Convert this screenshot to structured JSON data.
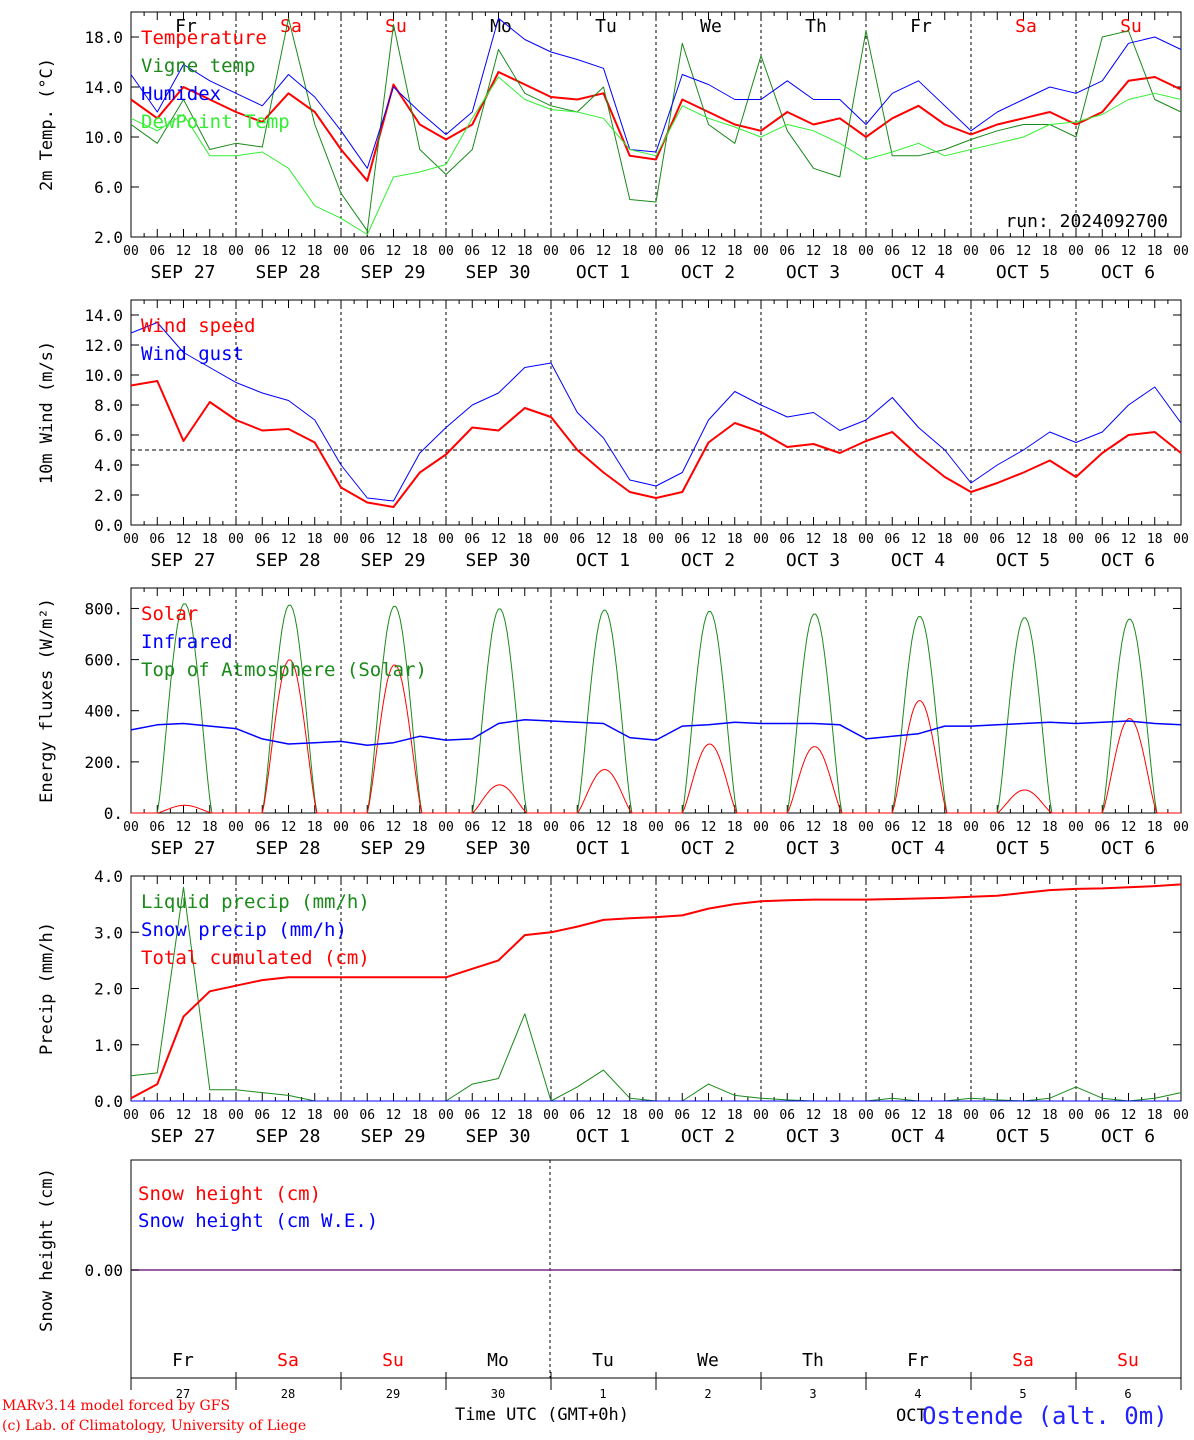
{
  "footer": {
    "model_line1": "MARv3.14 model forced by GFS",
    "model_line2": "(c) Lab. of Climatology, University of Liege",
    "time_label": "Time UTC (GMT+0h)",
    "location": "Ostende (alt. 0m)",
    "month_label": "OCT"
  },
  "colors": {
    "red": "#ff0000",
    "green": "#1a8a1a",
    "blue": "#0000ff",
    "lightgreen": "#33ee33",
    "purple": "#7a2a8a"
  },
  "days": [
    {
      "weekday": "Fr",
      "date": "SEP 27",
      "num": "27",
      "weekend": false
    },
    {
      "weekday": "Sa",
      "date": "SEP 28",
      "num": "28",
      "weekend": true
    },
    {
      "weekday": "Su",
      "date": "SEP 29",
      "num": "29",
      "weekend": true
    },
    {
      "weekday": "Mo",
      "date": "SEP 30",
      "num": "30",
      "weekend": false
    },
    {
      "weekday": "Tu",
      "date": "OCT  1",
      "num": "1",
      "weekend": false
    },
    {
      "weekday": "We",
      "date": "OCT  2",
      "num": "2",
      "weekend": false
    },
    {
      "weekday": "Th",
      "date": "OCT  3",
      "num": "3",
      "weekend": false
    },
    {
      "weekday": "Fr",
      "date": "OCT  4",
      "num": "4",
      "weekend": false
    },
    {
      "weekday": "Sa",
      "date": "OCT  5",
      "num": "5",
      "weekend": true
    },
    {
      "weekday": "Su",
      "date": "OCT  6",
      "num": "6",
      "weekend": true
    }
  ],
  "hour_ticks": [
    "00",
    "06",
    "12",
    "18"
  ],
  "end_tick": "00",
  "chart_data": [
    {
      "type": "line",
      "ylabel": "2m Temp. (°C)",
      "ylim": [
        2,
        20
      ],
      "yticks": [
        2,
        6,
        10,
        14,
        18
      ],
      "ytick_labels": [
        "2.0",
        "6.0",
        "10.0",
        "14.0",
        "18.0"
      ],
      "annotation": "run: 2024092700",
      "legend": "top-left",
      "x_hours": [
        0,
        6,
        12,
        18,
        24,
        30,
        36,
        42,
        48,
        54,
        60,
        66,
        72,
        78,
        84,
        90,
        96,
        102,
        108,
        114,
        120,
        126,
        132,
        138,
        144,
        150,
        156,
        162,
        168,
        174,
        180,
        186,
        192,
        198,
        204,
        210,
        216,
        222,
        228,
        234,
        240
      ],
      "series": [
        {
          "name": "Temperature",
          "color": "red",
          "width": 2,
          "values": [
            13.0,
            11.5,
            14.0,
            13.0,
            12.0,
            11.2,
            13.5,
            12.0,
            9.0,
            6.5,
            14.2,
            11.0,
            9.8,
            11.0,
            15.2,
            14.2,
            13.2,
            13.0,
            13.5,
            8.5,
            8.2,
            13.0,
            12.0,
            11.0,
            10.5,
            12.0,
            11.0,
            11.5,
            10.0,
            11.5,
            12.5,
            11.0,
            10.2,
            11.0,
            11.5,
            12.0,
            11.0,
            12.0,
            14.5,
            14.8,
            13.8
          ]
        },
        {
          "name": "Vigne temp",
          "color": "green",
          "width": 1,
          "values": [
            11.0,
            9.5,
            13.0,
            9.0,
            9.5,
            9.2,
            19.5,
            11.0,
            5.5,
            2.5,
            19.0,
            9.0,
            7.0,
            9.0,
            17.0,
            13.5,
            12.5,
            12.0,
            14.0,
            5.0,
            4.8,
            17.5,
            11.0,
            9.5,
            16.5,
            10.5,
            7.5,
            6.8,
            18.5,
            8.5,
            8.5,
            9.0,
            9.8,
            10.5,
            11.0,
            11.0,
            10.0,
            18.0,
            18.5,
            13.0,
            12.0
          ]
        },
        {
          "name": "Humidex",
          "color": "blue",
          "width": 1,
          "values": [
            15.0,
            12.0,
            15.8,
            14.5,
            13.5,
            12.5,
            15.0,
            13.2,
            10.5,
            7.5,
            14.0,
            12.0,
            10.2,
            12.0,
            19.5,
            17.8,
            16.8,
            16.2,
            15.5,
            9.0,
            8.8,
            15.0,
            14.2,
            13.0,
            13.0,
            14.5,
            13.0,
            13.0,
            11.0,
            13.5,
            14.5,
            12.5,
            10.5,
            12.0,
            13.0,
            14.0,
            13.5,
            14.5,
            17.5,
            18.0,
            17.0
          ]
        },
        {
          "name": "DewPoint Temp",
          "color": "lightgreen",
          "width": 1,
          "values": [
            11.5,
            10.5,
            11.8,
            8.5,
            8.5,
            8.8,
            7.5,
            4.5,
            3.5,
            2.2,
            6.8,
            7.2,
            7.8,
            11.5,
            14.8,
            13.0,
            12.2,
            12.0,
            11.5,
            9.0,
            8.5,
            12.5,
            11.5,
            10.8,
            10.0,
            11.0,
            10.5,
            9.5,
            8.2,
            8.8,
            9.5,
            8.5,
            9.0,
            9.5,
            10.0,
            11.0,
            11.2,
            11.8,
            13.0,
            13.5,
            13.0
          ]
        }
      ]
    },
    {
      "type": "line",
      "ylabel": "10m Wind (m/s)",
      "ylim": [
        0,
        15
      ],
      "yticks": [
        0,
        2,
        4,
        6,
        8,
        10,
        12,
        14
      ],
      "ytick_labels": [
        "0.0",
        "2.0",
        "4.0",
        "6.0",
        "8.0",
        "10.0",
        "12.0",
        "14.0"
      ],
      "reference_line": 5,
      "legend": "top-left",
      "x_hours": [
        0,
        6,
        12,
        18,
        24,
        30,
        36,
        42,
        48,
        54,
        60,
        66,
        72,
        78,
        84,
        90,
        96,
        102,
        108,
        114,
        120,
        126,
        132,
        138,
        144,
        150,
        156,
        162,
        168,
        174,
        180,
        186,
        192,
        198,
        204,
        210,
        216,
        222,
        228,
        234,
        240
      ],
      "series": [
        {
          "name": "Wind speed",
          "color": "red",
          "width": 2,
          "values": [
            9.3,
            9.6,
            5.6,
            8.2,
            7.0,
            6.3,
            6.4,
            5.5,
            2.5,
            1.5,
            1.2,
            3.5,
            4.7,
            6.5,
            6.3,
            7.8,
            7.2,
            5.0,
            3.5,
            2.2,
            1.8,
            2.2,
            5.5,
            6.8,
            6.2,
            5.2,
            5.4,
            4.8,
            5.6,
            6.2,
            4.6,
            3.2,
            2.2,
            2.8,
            3.5,
            4.3,
            3.2,
            4.8,
            6.0,
            6.2,
            4.8
          ]
        },
        {
          "name": "Wind gust",
          "color": "blue",
          "width": 1,
          "values": [
            12.8,
            13.5,
            11.5,
            10.5,
            9.5,
            8.8,
            8.3,
            7.0,
            4.0,
            1.8,
            1.6,
            4.8,
            6.5,
            8.0,
            8.8,
            10.5,
            10.8,
            7.5,
            5.8,
            3.0,
            2.6,
            3.5,
            7.0,
            8.9,
            8.0,
            7.2,
            7.5,
            6.3,
            7.0,
            8.5,
            6.5,
            5.0,
            2.8,
            4.0,
            5.0,
            6.2,
            5.5,
            6.2,
            8.0,
            9.2,
            6.8
          ]
        }
      ]
    },
    {
      "type": "line",
      "ylabel": "Energy fluxes (W/m²)",
      "ylim": [
        0,
        880
      ],
      "yticks": [
        0,
        200,
        400,
        600,
        800
      ],
      "ytick_labels": [
        "0.",
        "200.",
        "400.",
        "600.",
        "800."
      ],
      "legend": "top-left",
      "series": [
        {
          "name": "Solar",
          "color": "red",
          "width": 1,
          "peaks": [
            30,
            600,
            580,
            110,
            170,
            270,
            260,
            440,
            90,
            370
          ]
        },
        {
          "name": "Infrared",
          "color": "blue",
          "width": 1,
          "x_hours": [
            0,
            6,
            12,
            18,
            24,
            30,
            36,
            42,
            48,
            54,
            60,
            66,
            72,
            78,
            84,
            90,
            96,
            102,
            108,
            114,
            120,
            126,
            132,
            138,
            144,
            150,
            156,
            162,
            168,
            174,
            180,
            186,
            192,
            198,
            204,
            210,
            216,
            222,
            228,
            234,
            240
          ],
          "values": [
            325,
            345,
            350,
            340,
            330,
            290,
            270,
            275,
            280,
            265,
            275,
            300,
            285,
            290,
            350,
            365,
            360,
            355,
            350,
            295,
            285,
            340,
            345,
            355,
            350,
            350,
            350,
            345,
            290,
            300,
            310,
            340,
            340,
            345,
            350,
            355,
            350,
            355,
            360,
            350,
            345
          ]
        },
        {
          "name": "Top of Atmosphere (Solar)",
          "color": "green",
          "width": 1,
          "peaks": [
            820,
            815,
            810,
            800,
            795,
            790,
            780,
            770,
            765,
            760
          ]
        }
      ]
    },
    {
      "type": "line",
      "ylabel": "Precip (mm/h)",
      "ylim": [
        0,
        4
      ],
      "yticks": [
        0,
        1,
        2,
        3,
        4
      ],
      "ytick_labels": [
        "0.0",
        "1.0",
        "2.0",
        "3.0",
        "4.0"
      ],
      "legend": "top-left",
      "x_hours": [
        0,
        6,
        12,
        18,
        24,
        30,
        36,
        42,
        48,
        54,
        60,
        66,
        72,
        78,
        84,
        90,
        96,
        102,
        108,
        114,
        120,
        126,
        132,
        138,
        144,
        150,
        156,
        162,
        168,
        174,
        180,
        186,
        192,
        198,
        204,
        210,
        216,
        222,
        228,
        234,
        240
      ],
      "series": [
        {
          "name": "Liquid precip (mm/h)",
          "color": "green",
          "width": 1,
          "values": [
            0.45,
            0.5,
            3.8,
            0.2,
            0.2,
            0.15,
            0.1,
            0.0,
            0.0,
            0.0,
            0.0,
            0.0,
            0.0,
            0.3,
            0.4,
            1.55,
            0.0,
            0.25,
            0.55,
            0.05,
            0.0,
            0.0,
            0.3,
            0.1,
            0.05,
            0.02,
            0.0,
            0.0,
            0.0,
            0.05,
            0.0,
            0.0,
            0.05,
            0.02,
            0.0,
            0.05,
            0.25,
            0.05,
            0.0,
            0.05,
            0.15
          ]
        },
        {
          "name": "Snow precip (mm/h)",
          "color": "blue",
          "width": 1,
          "values": [
            0,
            0,
            0,
            0,
            0,
            0,
            0,
            0,
            0,
            0,
            0,
            0,
            0,
            0,
            0,
            0,
            0,
            0,
            0,
            0,
            0,
            0,
            0,
            0,
            0,
            0,
            0,
            0,
            0,
            0,
            0,
            0,
            0,
            0,
            0,
            0,
            0,
            0,
            0,
            0,
            0
          ]
        },
        {
          "name": "Total cumulated (cm)",
          "color": "red",
          "width": 2,
          "values": [
            0.05,
            0.3,
            1.5,
            1.95,
            2.05,
            2.15,
            2.2,
            2.2,
            2.2,
            2.2,
            2.2,
            2.2,
            2.2,
            2.35,
            2.5,
            2.95,
            3.0,
            3.1,
            3.22,
            3.25,
            3.27,
            3.3,
            3.42,
            3.5,
            3.55,
            3.57,
            3.58,
            3.58,
            3.58,
            3.59,
            3.6,
            3.61,
            3.63,
            3.65,
            3.7,
            3.75,
            3.77,
            3.78,
            3.8,
            3.82,
            3.85
          ]
        }
      ]
    },
    {
      "type": "line",
      "ylabel": "Snow height (cm)",
      "yticks": [
        0
      ],
      "ytick_labels": [
        "0.00"
      ],
      "legend": "top-left",
      "series": [
        {
          "name": "Snow height (cm)",
          "color": "red",
          "values": [
            0,
            0
          ]
        },
        {
          "name": "Snow height (cm W.E.)",
          "color": "blue",
          "values": [
            0,
            0
          ]
        }
      ]
    }
  ]
}
